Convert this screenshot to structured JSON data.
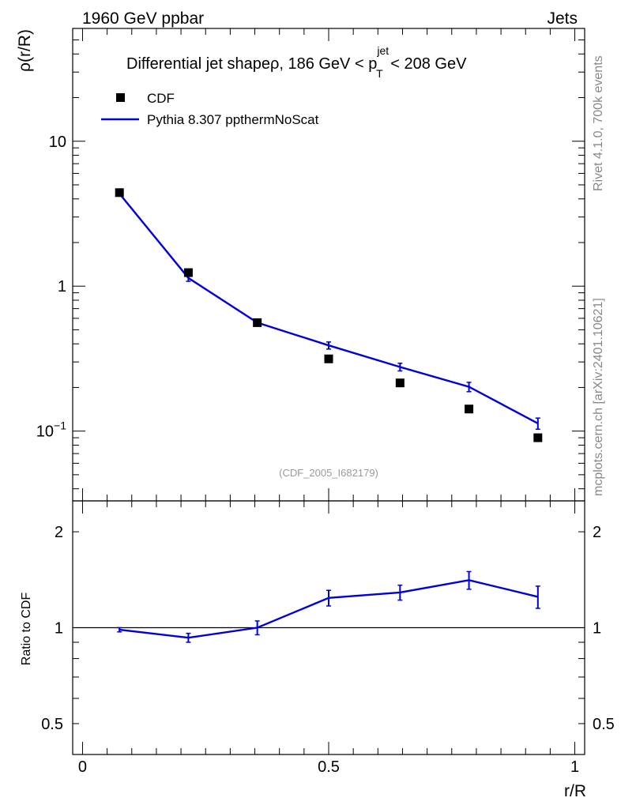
{
  "header": {
    "left": "1960 GeV ppbar",
    "right": "Jets"
  },
  "side_labels": {
    "rivet": "Rivet 4.1.0,  700k events",
    "mcplots": "mcplots.cern.ch [arXiv:2401.10621]"
  },
  "colors": {
    "mc": "#0000dd",
    "data": "#000000",
    "watermark": "#999999"
  },
  "chart_data": [
    {
      "type": "scatter",
      "panel": "main",
      "title": "Differential jet shapeρ, 186 GeV < p",
      "title_sup": "jet",
      "title_sub": "T",
      "title_tail": " < 208 GeV",
      "ylabel": "ρ(r/R)",
      "xlabel": "",
      "yscale": "log",
      "ylim": [
        0.033,
        60
      ],
      "xlim": [
        -0.02,
        1.02
      ],
      "yticks": [
        {
          "value": 10,
          "label": "10"
        },
        {
          "value": 1,
          "label": "1"
        },
        {
          "value": 0.1,
          "label": "10",
          "exp": "−1"
        }
      ],
      "watermark": "(CDF_2005_I682179)",
      "legend": [
        {
          "name": "CDF",
          "marker": "square"
        },
        {
          "name": "Pythia 8.307 ppthermNoScat",
          "marker": "line"
        }
      ],
      "series": [
        {
          "name": "CDF",
          "style": "markers",
          "x": [
            0.075,
            0.215,
            0.355,
            0.5,
            0.645,
            0.785,
            0.925
          ],
          "y": [
            4.42,
            1.24,
            0.56,
            0.315,
            0.215,
            0.142,
            0.09
          ]
        },
        {
          "name": "Pythia 8.307 ppthermNoScat",
          "style": "line",
          "x": [
            0.075,
            0.215,
            0.355,
            0.5,
            0.645,
            0.785,
            0.925
          ],
          "y": [
            4.35,
            1.14,
            0.56,
            0.39,
            0.277,
            0.202,
            0.113
          ],
          "err": [
            0.06,
            0.06,
            0.015,
            0.022,
            0.017,
            0.015,
            0.01
          ]
        }
      ]
    },
    {
      "type": "line",
      "panel": "ratio",
      "ylabel": "Ratio to CDF",
      "xlabel": "r/R",
      "yscale": "log",
      "ylim": [
        0.4,
        2.5
      ],
      "xlim": [
        -0.02,
        1.02
      ],
      "reference": 1,
      "yticks": [
        {
          "value": 2,
          "label": "2"
        },
        {
          "value": 1,
          "label": "1"
        },
        {
          "value": 0.5,
          "label": "0.5"
        }
      ],
      "xticks": [
        {
          "value": 0,
          "label": "0"
        },
        {
          "value": 0.5,
          "label": "0.5"
        },
        {
          "value": 1,
          "label": "1"
        }
      ],
      "series": [
        {
          "name": "Pythia 8.307 ppthermNoScat",
          "x": [
            0.075,
            0.215,
            0.355,
            0.5,
            0.645,
            0.785,
            0.925
          ],
          "y": [
            0.985,
            0.93,
            1.0,
            1.24,
            1.29,
            1.41,
            1.25
          ],
          "err": [
            0.015,
            0.03,
            0.05,
            0.07,
            0.07,
            0.09,
            0.1
          ]
        }
      ]
    }
  ]
}
